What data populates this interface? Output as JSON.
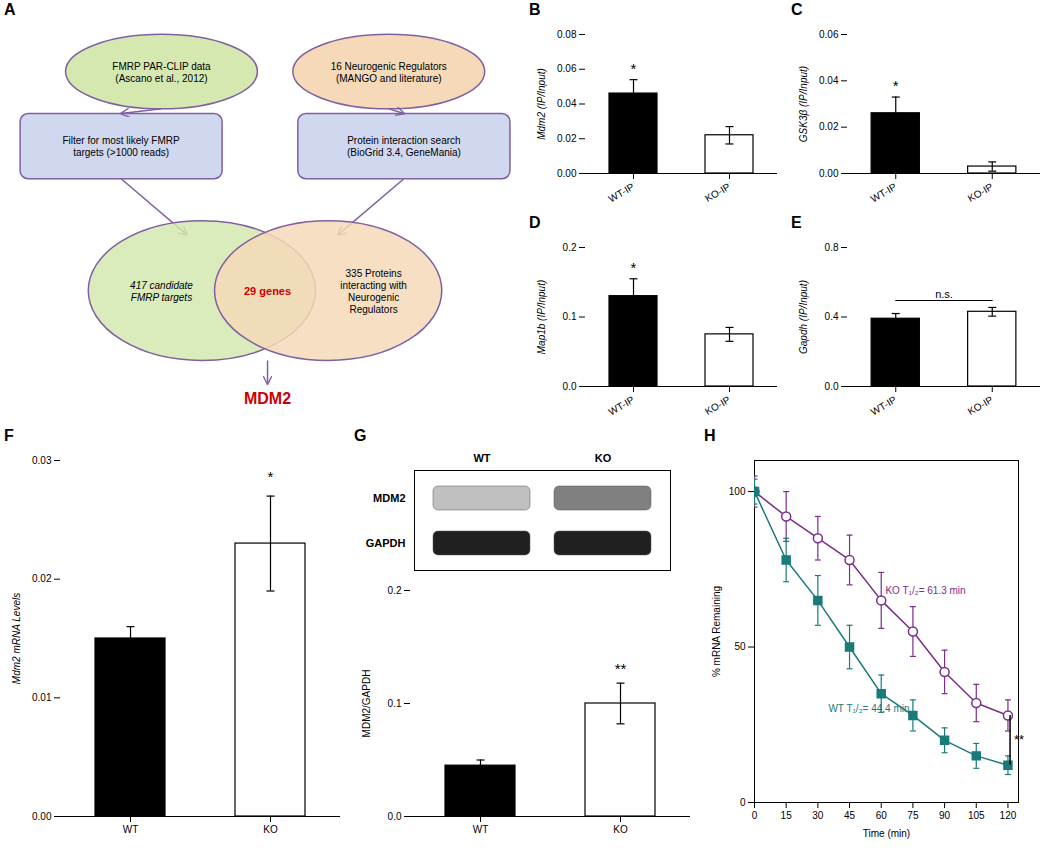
{
  "chart_data": [
    {
      "type": "diagram",
      "title": "A",
      "color": "#8060a0",
      "annotations": [
        {
          "text": "FMRP PAR-CLIP data\n(Ascano et al., 2012)",
          "color": "#d4e8b0"
        },
        {
          "text": "16 Neurogenic Regulators\n(MANGO and literature)",
          "color": "#f5d9b8"
        },
        {
          "text": "Filter for most likely FMRP\ntargets (>1000 reads)",
          "color": "#d0d8f0"
        },
        {
          "text": "Protein interaction search\n(BioGrid 3.4, GeneMania)",
          "color": "#d0d8f0"
        },
        {
          "text": "417 candidate\nFMRP targets",
          "color": "#d4e8b0"
        },
        {
          "text": "335 Proteins\ninteracting with\nNeurogenic\nRegulators",
          "color": "#f5d9b8"
        },
        {
          "text": "29 genes",
          "color": "#cc0000"
        },
        {
          "text": "MDM2",
          "color": "#cc0000"
        }
      ]
    },
    {
      "type": "bar",
      "title": "B",
      "categories": [
        "WT-IP",
        "KO-IP"
      ],
      "values": [
        0.046,
        0.022
      ],
      "errors": [
        0.008,
        0.005
      ],
      "colors": [
        "black",
        "white"
      ],
      "ylabel": "Mdm2 (IP/Input)",
      "ylim": [
        0,
        0.08
      ],
      "yticks": [
        {
          "value": 0,
          "label": "0.00"
        },
        0.02,
        0.04,
        0.06,
        0.08
      ],
      "annotations": [
        {
          "text": "*",
          "x": "WT-IP"
        }
      ]
    },
    {
      "type": "bar",
      "title": "C",
      "categories": [
        "WT-IP",
        "KO-IP"
      ],
      "values": [
        0.026,
        0.003
      ],
      "errors": [
        0.007,
        0.002
      ],
      "colors": [
        "black",
        "white"
      ],
      "ylabel": "GSK3β (IP/Input)",
      "ylim": [
        0,
        0.06
      ],
      "yticks": [
        {
          "value": 0,
          "label": "0.00"
        },
        0.02,
        0.04,
        0.06
      ],
      "annotations": [
        {
          "text": "*",
          "x": "WT-IP"
        }
      ]
    },
    {
      "type": "bar",
      "title": "D",
      "categories": [
        "WT-IP",
        "KO-IP"
      ],
      "values": [
        0.13,
        0.075
      ],
      "errors": [
        0.025,
        0.01
      ],
      "colors": [
        "black",
        "white"
      ],
      "ylabel": "Map1b (IP/Input)",
      "ylim": [
        0,
        0.2
      ],
      "yticks": [
        {
          "value": 0,
          "label": "0.0"
        },
        0.1,
        0.2
      ],
      "annotations": [
        {
          "text": "*",
          "x": "WT-IP"
        }
      ]
    },
    {
      "type": "bar",
      "title": "E",
      "categories": [
        "WT-IP",
        "KO-IP"
      ],
      "values": [
        0.39,
        0.43
      ],
      "errors": [
        0.03,
        0.025
      ],
      "colors": [
        "black",
        "white"
      ],
      "ylabel": "Gapdh (IP/Input)",
      "ylim": [
        0,
        0.8
      ],
      "yticks": [
        {
          "value": 0,
          "label": "0.0"
        },
        0.4,
        0.8
      ],
      "annotations": [
        {
          "text": "n.s.",
          "x": [
            "WT-IP",
            "KO-IP"
          ]
        }
      ]
    },
    {
      "type": "bar",
      "title": "F",
      "categories": [
        "WT",
        "KO"
      ],
      "values": [
        0.015,
        0.023
      ],
      "errors": [
        0.001,
        0.004
      ],
      "colors": [
        "black",
        "white"
      ],
      "ylabel": "Mdm2 mRNA Levels",
      "ylim": [
        0,
        0.03
      ],
      "yticks": [
        {
          "value": 0,
          "label": "0.00"
        },
        0.01,
        0.02,
        0.03
      ],
      "annotations": [
        {
          "text": "*",
          "x": "KO"
        }
      ]
    },
    {
      "type": "blot",
      "title": "G",
      "categories": [
        "WT",
        "KO"
      ],
      "series": [
        {
          "name": "MDM2",
          "colors": [
            "#c0c0c0",
            "#808080"
          ]
        },
        {
          "name": "GAPDH",
          "colors": [
            "#202020",
            "#202020"
          ]
        }
      ]
    },
    {
      "type": "bar",
      "categories": [
        "WT",
        "KO"
      ],
      "values": [
        0.045,
        0.1
      ],
      "errors": [
        0.005,
        0.018
      ],
      "colors": [
        "black",
        "white"
      ],
      "ylabel": "MDM2/GAPDH",
      "ylim": [
        0,
        0.2
      ],
      "yticks": [
        {
          "value": 0,
          "label": "0.0"
        },
        0.1,
        0.2
      ],
      "annotations": [
        {
          "text": "**",
          "x": "KO"
        }
      ]
    },
    {
      "type": "line",
      "title": "H",
      "x": [
        0,
        15,
        30,
        45,
        60,
        75,
        90,
        105,
        120
      ],
      "xlabel": "Time (min)",
      "ylabel": "% mRNA Remaining",
      "xlim": [
        0,
        125
      ],
      "ylim": [
        0,
        110
      ],
      "xticks": [
        0,
        15,
        30,
        45,
        60,
        75,
        90,
        105,
        120
      ],
      "yticks": [
        0,
        50,
        100
      ],
      "series": [
        {
          "name": "KO T₁/₂= 61.3 min",
          "color": "#7B2D8B",
          "marker": "open_circle",
          "values": [
            100,
            92,
            85,
            78,
            65,
            55,
            42,
            32,
            28
          ],
          "errors": [
            5,
            8,
            7,
            8,
            9,
            8,
            7,
            6,
            5
          ]
        },
        {
          "name": "WT T₁/₂= 44.4 min",
          "color": "#1A7A7A",
          "marker": "square",
          "values": [
            100,
            78,
            65,
            50,
            35,
            28,
            20,
            15,
            12
          ],
          "errors": [
            4,
            7,
            8,
            7,
            6,
            5,
            4,
            4,
            3
          ]
        }
      ],
      "annotations": [
        {
          "text": "KO T₁/₂= 61.3 min",
          "x": 62,
          "y": 68
        },
        {
          "text": "WT T₁/₂= 44.4 min",
          "x": 35,
          "y": 30
        },
        {
          "text": "**",
          "x": 121,
          "y": [
            12,
            28
          ]
        }
      ]
    }
  ]
}
